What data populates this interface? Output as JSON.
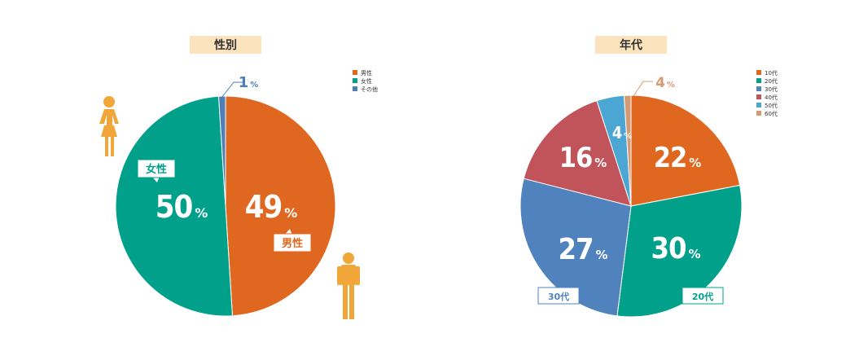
{
  "chart_data": [
    {
      "type": "pie",
      "title": "性別",
      "legend_position": "top-right",
      "unit": "%",
      "slices": [
        {
          "label": "男性",
          "value": 49,
          "color": "#E0671F"
        },
        {
          "label": "女性",
          "value": 50,
          "color": "#00A08A"
        },
        {
          "label": "その他",
          "value": 1,
          "color": "#4E7DB8"
        }
      ],
      "callouts": {
        "male": "男性",
        "female": "女性"
      },
      "icons": [
        "female-person-icon",
        "male-person-icon"
      ]
    },
    {
      "type": "pie",
      "title": "年代",
      "legend_position": "top-right",
      "unit": "%",
      "slices": [
        {
          "label": "10代",
          "value": 22,
          "color": "#E0671F"
        },
        {
          "label": "20代",
          "value": 30,
          "color": "#00A08A"
        },
        {
          "label": "30代",
          "value": 27,
          "color": "#5083BE"
        },
        {
          "label": "40代",
          "value": 16,
          "color": "#C1545A"
        },
        {
          "label": "50代",
          "value": 4,
          "color": "#4BA6D3"
        },
        {
          "label": "60代",
          "value": 1,
          "color": "#D69A73"
        }
      ],
      "callouts": {
        "age30": "30代",
        "age20": "20代"
      }
    }
  ],
  "colors": {
    "title_bg": "#FBE3BE",
    "icon_orange": "#F1A63A"
  }
}
